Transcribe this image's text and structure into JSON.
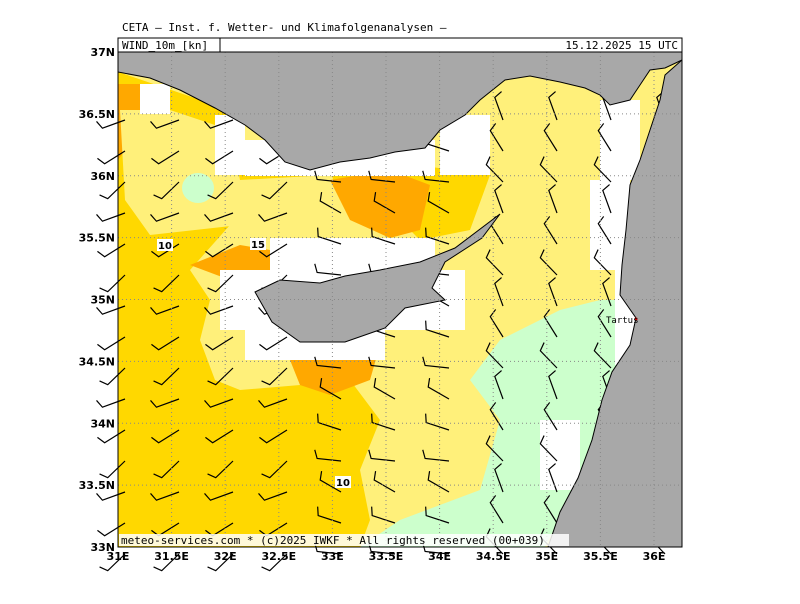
{
  "header": {
    "source": "CETA – Inst. f. Wetter- und Klimafolgenanalysen –",
    "field": "WIND_10m_[kn]",
    "datetime": "15.12.2025 15 UTC"
  },
  "map": {
    "lat_labels": [
      "37N",
      "36.5N",
      "36N",
      "35.5N",
      "35N",
      "34.5N",
      "34N",
      "33.5N",
      "33N"
    ],
    "lon_labels": [
      "31E",
      "31.5E",
      "32E",
      "32.5E",
      "33E",
      "33.5E",
      "34E",
      "34.5E",
      "35E",
      "35.5E",
      "36E"
    ],
    "contour_labels": [
      "10",
      "15",
      "10"
    ],
    "places": [
      "Tartus"
    ]
  },
  "footer": "meteo-services.com * (c)2025 IWKF * All rights reserved (00+039)"
}
